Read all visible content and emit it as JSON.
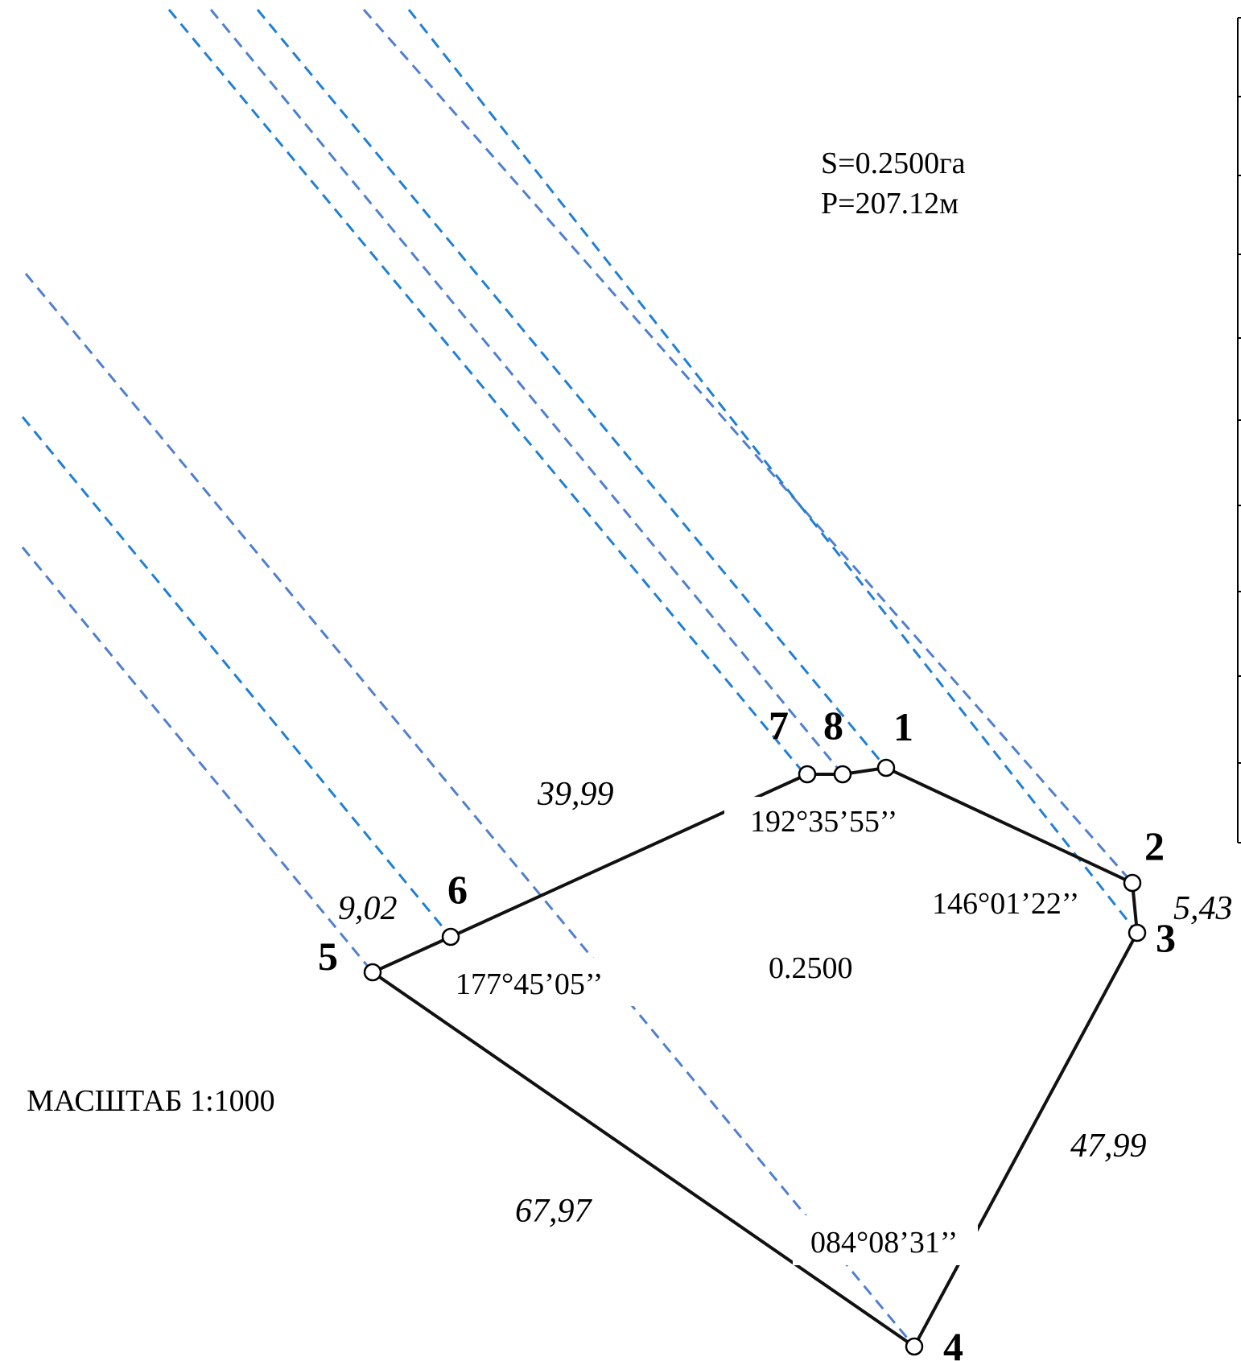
{
  "info": {
    "area_line": "S=0.2500га",
    "perimeter_line": "P=207.12м"
  },
  "parcel_area": "0.2500",
  "scale": "МАСШТАБ 1:1000",
  "points": [
    {
      "id": "1",
      "label": "1"
    },
    {
      "id": "2",
      "label": "2"
    },
    {
      "id": "3",
      "label": "3"
    },
    {
      "id": "4",
      "label": "4"
    },
    {
      "id": "5",
      "label": "5"
    },
    {
      "id": "6",
      "label": "6"
    },
    {
      "id": "7",
      "label": "7"
    },
    {
      "id": "8",
      "label": "8"
    }
  ],
  "lengths": {
    "side_7_5": "39,99",
    "side_6_5": "9,02",
    "side_2_3": "5,43",
    "side_3_4": "47,99",
    "side_4_5": "67,97"
  },
  "angles": {
    "at_7": "192°35’55’’",
    "at_2": "146°01’22’’",
    "at_6": "177°45’05’’",
    "at_4": "084°08’31’’"
  },
  "colors": {
    "boundary": "#111111",
    "dashed_lines": [
      "#1f7fd6",
      "#4f7fd0"
    ],
    "vertex_fill": "#ffffff"
  }
}
